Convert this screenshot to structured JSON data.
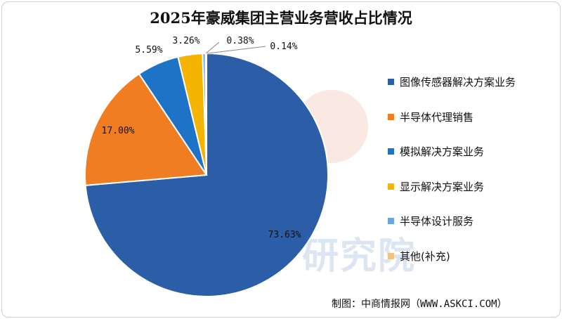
{
  "chart_data": {
    "type": "pie",
    "title": "2025年豪威集团主营业务营收占比情况",
    "slices": [
      {
        "name": "图像传感器解决方案业务",
        "value": 73.63,
        "label": "73.63%",
        "color": "#2b5ea7"
      },
      {
        "name": "半导体代理销售",
        "value": 17.0,
        "label": "17.00%",
        "color": "#f07d22"
      },
      {
        "name": "模拟解决方案业务",
        "value": 5.59,
        "label": "5.59%",
        "color": "#1f73c7"
      },
      {
        "name": "显示解决方案业务",
        "value": 3.26,
        "label": "3.26%",
        "color": "#f5b400"
      },
      {
        "name": "半导体设计服务",
        "value": 0.38,
        "label": "0.38%",
        "color": "#6aa5db"
      },
      {
        "name": "其他(补充)",
        "value": 0.14,
        "label": "0.14%",
        "color": "#f2c27f"
      }
    ],
    "legend_position": "right"
  },
  "source": "制图：中商情报网（WWW.ASKCI.COM）",
  "watermark": "研究院"
}
